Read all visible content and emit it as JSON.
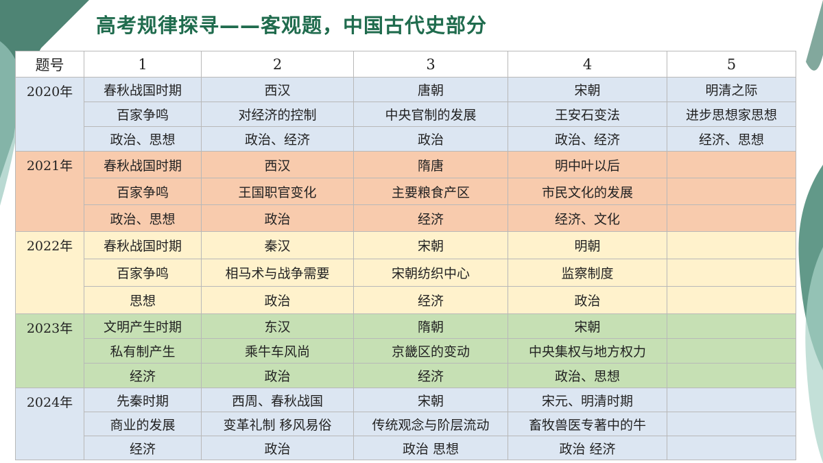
{
  "title": "高考规律探寻——客观题，中国古代史部分",
  "table": {
    "header": [
      "题号",
      "1",
      "2",
      "3",
      "4",
      "5"
    ],
    "groups": [
      {
        "year": "2020年",
        "rows": [
          [
            "春秋战国时期",
            "西汉",
            "唐朝",
            "宋朝",
            "明清之际"
          ],
          [
            "百家争鸣",
            "对经济的控制",
            "中央官制的发展",
            "王安石变法",
            "进步思想家思想"
          ],
          [
            "政治、思想",
            "政治、经济",
            "政治",
            "政治、经济",
            "经济、思想"
          ]
        ]
      },
      {
        "year": "2021年",
        "rows": [
          [
            "春秋战国时期",
            "西汉",
            "隋唐",
            "明中叶以后"
          ],
          [
            "百家争鸣",
            "王国职官变化",
            "主要粮食产区",
            "市民文化的发展"
          ],
          [
            "政治、思想",
            "政治",
            "经济",
            "经济、文化"
          ]
        ]
      },
      {
        "year": "2022年",
        "rows": [
          [
            "春秋战国时期",
            "秦汉",
            "宋朝",
            "明朝"
          ],
          [
            "百家争鸣",
            "相马术与战争需要",
            "宋朝纺织中心",
            "监察制度"
          ],
          [
            "思想",
            "政治",
            "经济",
            "政治"
          ]
        ]
      },
      {
        "year": "2023年",
        "rows": [
          [
            "文明产生时期",
            "东汉",
            "隋朝",
            "宋朝"
          ],
          [
            "私有制产生",
            "乘牛车风尚",
            "京畿区的变动",
            "中央集权与地方权力"
          ],
          [
            "经济",
            "政治",
            "经济",
            "政治、思想"
          ]
        ]
      },
      {
        "year": "2024年",
        "rows": [
          [
            "先秦时期",
            "西周、春秋战国",
            "宋朝",
            "宋元、明清时期"
          ],
          [
            "商业的发展",
            "变革礼制 移风易俗",
            "传统观念与阶层流动",
            "畜牧兽医专著中的牛"
          ],
          [
            "经济",
            "政治",
            "政治 思想",
            "政治 经济"
          ]
        ]
      }
    ]
  }
}
